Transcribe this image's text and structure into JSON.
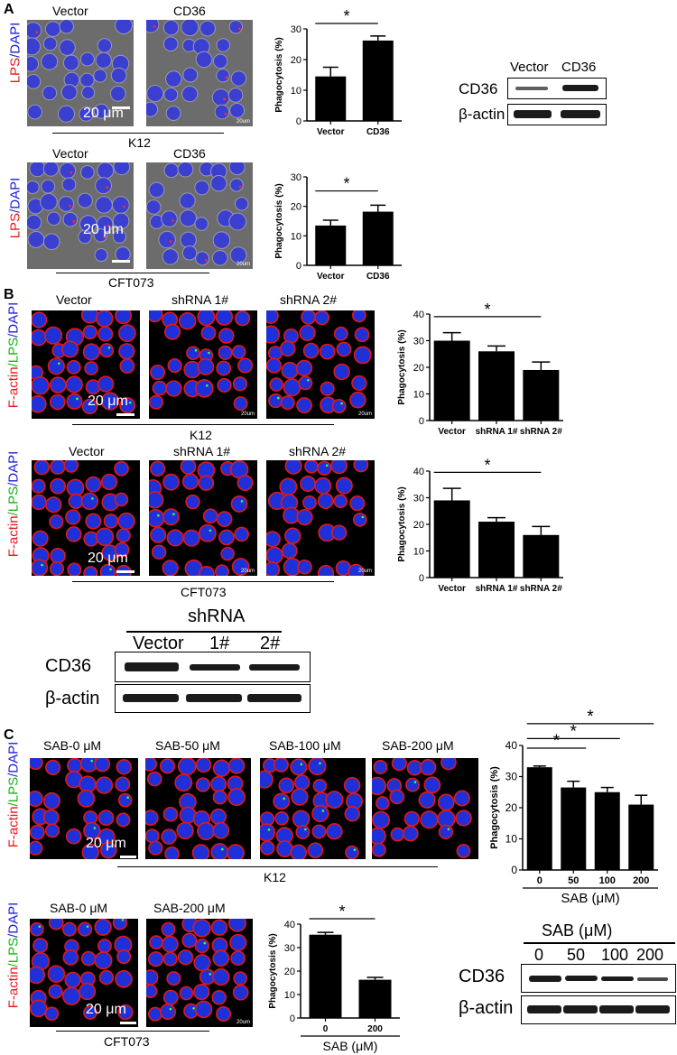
{
  "panels": {
    "A": {
      "letter": "A",
      "k12": {
        "stain": {
          "p1": "LPS",
          "sep1": "/",
          "p2": "DAPI"
        },
        "img_labels": [
          "Vector",
          "CD36"
        ],
        "scale": "20 μm",
        "tiny": "20um",
        "strain": "K12"
      },
      "cft": {
        "stain": {
          "p1": "LPS",
          "sep1": "/",
          "p2": "DAPI"
        },
        "img_labels": [
          "Vector",
          "CD36"
        ],
        "scale": "20 μm",
        "tiny": "20um",
        "strain": "CFT073"
      },
      "blot": {
        "lanes": [
          "Vector",
          "CD36"
        ],
        "rows": [
          "CD36",
          "β-actin"
        ]
      }
    },
    "B": {
      "letter": "B",
      "k12": {
        "stain": {
          "p1": "F-actin",
          "sep1": "/",
          "p2": "LPS",
          "sep2": "/",
          "p3": "DAPI"
        },
        "img_labels": [
          "Vector",
          "shRNA 1#",
          "shRNA 2#"
        ],
        "scale": "20 μm",
        "tiny": "20um",
        "strain": "K12"
      },
      "cft": {
        "stain": {
          "p1": "F-actin",
          "sep1": "/",
          "p2": "LPS",
          "sep2": "/",
          "p3": "DAPI"
        },
        "img_labels": [
          "Vector",
          "shRNA 1#",
          "shRNA 2#"
        ],
        "scale": "20 μm",
        "tiny": "20um",
        "strain": "CFT073"
      },
      "blot": {
        "title": "shRNA",
        "lanes": [
          "Vector",
          "1#",
          "2#"
        ],
        "rows": [
          "CD36",
          "β-actin"
        ]
      }
    },
    "C": {
      "letter": "C",
      "k12": {
        "stain": {
          "p1": "F-actin",
          "sep1": "/",
          "p2": "LPS",
          "sep2": "/",
          "p3": "DAPI"
        },
        "img_labels": [
          "SAB-0 μM",
          "SAB-50 μM",
          "SAB-100 μM",
          "SAB-200 μM"
        ],
        "scale": "20 μm",
        "strain": "K12"
      },
      "cft": {
        "stain": {
          "p1": "F-actin",
          "sep1": "/",
          "p2": "LPS",
          "sep2": "/",
          "p3": "DAPI"
        },
        "img_labels": [
          "SAB-0 μM",
          "SAB-200 μM"
        ],
        "scale": "20 μm",
        "tiny": "20um",
        "strain": "CFT073"
      },
      "blot": {
        "title": "SAB (μM)",
        "lanes": [
          "0",
          "50",
          "100",
          "200"
        ],
        "rows": [
          "CD36",
          "β-actin"
        ]
      }
    }
  },
  "chart_data": [
    {
      "id": "A1",
      "type": "bar",
      "categories": [
        "Vector",
        "CD36"
      ],
      "values": [
        14.5,
        26.2
      ],
      "errors": [
        3.0,
        1.5
      ],
      "ylabel": "Phagocytosis (%)",
      "ylim": [
        0,
        30
      ],
      "yticks": [
        0,
        10,
        20,
        30
      ],
      "sig": [
        {
          "from": 0,
          "to": 1,
          "label": "*"
        }
      ],
      "xlabel": ""
    },
    {
      "id": "A2",
      "type": "bar",
      "categories": [
        "Vector",
        "CD36"
      ],
      "values": [
        13.5,
        18.2
      ],
      "errors": [
        1.8,
        2.2
      ],
      "ylabel": "Phagocytosis (%)",
      "ylim": [
        0,
        30
      ],
      "yticks": [
        0,
        10,
        20,
        30
      ],
      "sig": [
        {
          "from": 0,
          "to": 1,
          "label": "*"
        }
      ],
      "xlabel": ""
    },
    {
      "id": "B1",
      "type": "bar",
      "categories": [
        "Vector",
        "shRNA 1#",
        "shRNA 2#"
      ],
      "values": [
        30,
        26,
        19
      ],
      "errors": [
        3,
        2,
        3
      ],
      "ylabel": "Phagocytosis (%)",
      "ylim": [
        0,
        40
      ],
      "yticks": [
        0,
        10,
        20,
        30,
        40
      ],
      "sig": [
        {
          "from": 0,
          "to": 2,
          "label": "*"
        }
      ],
      "xlabel": ""
    },
    {
      "id": "B2",
      "type": "bar",
      "categories": [
        "Vector",
        "shRNA 1#",
        "shRNA 2#"
      ],
      "values": [
        29,
        21,
        16
      ],
      "errors": [
        4.5,
        1.5,
        3.2
      ],
      "ylabel": "Phagocytosis (%)",
      "ylim": [
        0,
        40
      ],
      "yticks": [
        0,
        10,
        20,
        30,
        40
      ],
      "sig": [
        {
          "from": 0,
          "to": 2,
          "label": "*"
        }
      ],
      "xlabel": ""
    },
    {
      "id": "C1",
      "type": "bar",
      "categories": [
        "0",
        "50",
        "100",
        "200"
      ],
      "values": [
        33,
        26.5,
        25,
        21
      ],
      "errors": [
        0.4,
        2.0,
        1.5,
        3.0
      ],
      "ylabel": "Phagocytosis (%)",
      "ylim": [
        0,
        40
      ],
      "yticks": [
        0,
        10,
        20,
        30,
        40
      ],
      "sig": [
        {
          "from": 0,
          "to": 1,
          "label": "*"
        },
        {
          "from": 0,
          "to": 2,
          "label": "*"
        },
        {
          "from": 0,
          "to": 3,
          "label": "*"
        }
      ],
      "xlabel": "SAB (μM)"
    },
    {
      "id": "C2",
      "type": "bar",
      "categories": [
        "0",
        "200"
      ],
      "values": [
        35.5,
        16.3
      ],
      "errors": [
        1.0,
        1.0
      ],
      "ylabel": "Phagocytosis (%)",
      "ylim": [
        0,
        40
      ],
      "yticks": [
        0,
        10,
        20,
        30,
        40
      ],
      "sig": [
        {
          "from": 0,
          "to": 1,
          "label": "*"
        }
      ],
      "xlabel": "SAB (μM)"
    }
  ]
}
